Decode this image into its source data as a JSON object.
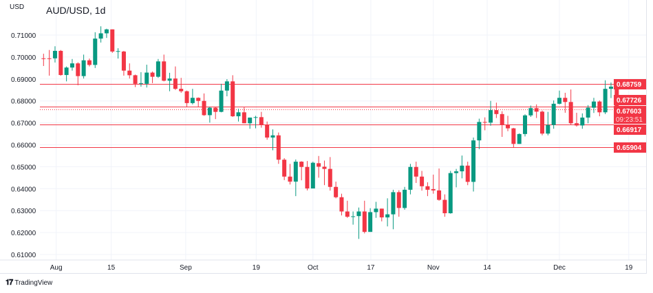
{
  "header": {
    "currency": "USD",
    "title": "AUD/USD, 1d"
  },
  "footer": {
    "brand": "TradingView",
    "logo_text": "TV"
  },
  "colors": {
    "up": "#089981",
    "down": "#f23645",
    "line": "#f23645",
    "grid": "#f0f3fa",
    "axis_text": "#131722"
  },
  "chart_data": {
    "type": "candlestick",
    "title": "AUD/USD, 1d",
    "ylabel": "USD",
    "ylim": [
      0.6075,
      0.716
    ],
    "y_ticks": [
      "0.71000",
      "0.70000",
      "0.69000",
      "0.68000",
      "0.67000",
      "0.66000",
      "0.65000",
      "0.64000",
      "0.63000",
      "0.62000",
      "0.61000"
    ],
    "x_ticks": [
      {
        "label": "Aug",
        "index": 2.2
      },
      {
        "label": "15",
        "index": 11.8
      },
      {
        "label": "Sep",
        "index": 24.8
      },
      {
        "label": "19",
        "index": 37.1
      },
      {
        "label": "Oct",
        "index": 47
      },
      {
        "label": "17",
        "index": 57.1
      },
      {
        "label": "Nov",
        "index": 68
      },
      {
        "label": "14",
        "index": 77.4
      },
      {
        "label": "Dec",
        "index": 90
      },
      {
        "label": "19",
        "index": 102.1
      }
    ],
    "candle_fields": [
      "open",
      "high",
      "low",
      "close"
    ],
    "candles": [
      [
        0.6994,
        0.7015,
        0.6959,
        0.6993
      ],
      [
        0.6994,
        0.7032,
        0.6915,
        0.6993
      ],
      [
        0.6994,
        0.7049,
        0.6975,
        0.7028
      ],
      [
        0.7028,
        0.7032,
        0.6915,
        0.6918
      ],
      [
        0.6918,
        0.6957,
        0.6889,
        0.6952
      ],
      [
        0.6952,
        0.6991,
        0.6938,
        0.6971
      ],
      [
        0.6971,
        0.6976,
        0.6871,
        0.6913
      ],
      [
        0.6913,
        0.7011,
        0.6902,
        0.6985
      ],
      [
        0.6985,
        0.6993,
        0.6957,
        0.6964
      ],
      [
        0.6964,
        0.7113,
        0.695,
        0.7084
      ],
      [
        0.7084,
        0.714,
        0.7066,
        0.7108
      ],
      [
        0.7108,
        0.7129,
        0.7087,
        0.7126
      ],
      [
        0.7126,
        0.7126,
        0.7019,
        0.7025
      ],
      [
        0.7025,
        0.704,
        0.6993,
        0.7027
      ],
      [
        0.7025,
        0.7028,
        0.6915,
        0.6938
      ],
      [
        0.6938,
        0.6971,
        0.6902,
        0.6917
      ],
      [
        0.6917,
        0.692,
        0.6863,
        0.6878
      ],
      [
        0.6878,
        0.6931,
        0.6865,
        0.6881
      ],
      [
        0.6878,
        0.6965,
        0.6861,
        0.6929
      ],
      [
        0.6929,
        0.6934,
        0.6881,
        0.691
      ],
      [
        0.691,
        0.6991,
        0.6905,
        0.698
      ],
      [
        0.698,
        0.7011,
        0.6889,
        0.6892
      ],
      [
        0.6892,
        0.6928,
        0.6844,
        0.6902
      ],
      [
        0.6902,
        0.6957,
        0.685,
        0.6855
      ],
      [
        0.6855,
        0.6905,
        0.6837,
        0.6844
      ],
      [
        0.6844,
        0.6847,
        0.6774,
        0.679
      ],
      [
        0.679,
        0.6855,
        0.6784,
        0.6814
      ],
      [
        0.6814,
        0.6816,
        0.6774,
        0.68
      ],
      [
        0.68,
        0.6834,
        0.6732,
        0.6735
      ],
      [
        0.6735,
        0.6774,
        0.6701,
        0.6769
      ],
      [
        0.6769,
        0.6774,
        0.6717,
        0.675
      ],
      [
        0.675,
        0.6878,
        0.6748,
        0.6847
      ],
      [
        0.6847,
        0.6899,
        0.6821,
        0.6889
      ],
      [
        0.6889,
        0.6917,
        0.6727,
        0.673
      ],
      [
        0.673,
        0.6764,
        0.6706,
        0.6748
      ],
      [
        0.6748,
        0.6771,
        0.6698,
        0.6698
      ],
      [
        0.6698,
        0.6724,
        0.6673,
        0.6724
      ],
      [
        0.6724,
        0.6732,
        0.6675,
        0.6726
      ],
      [
        0.6726,
        0.675,
        0.6678,
        0.6692
      ],
      [
        0.6692,
        0.6706,
        0.6623,
        0.6633
      ],
      [
        0.6633,
        0.667,
        0.6575,
        0.6643
      ],
      [
        0.6643,
        0.6656,
        0.6513,
        0.6532
      ],
      [
        0.6532,
        0.6539,
        0.6439,
        0.6455
      ],
      [
        0.6455,
        0.6513,
        0.6419,
        0.6432
      ],
      [
        0.6432,
        0.6533,
        0.6366,
        0.6523
      ],
      [
        0.6523,
        0.6525,
        0.6438,
        0.6499
      ],
      [
        0.6499,
        0.6526,
        0.6392,
        0.6401
      ],
      [
        0.6401,
        0.6523,
        0.6401,
        0.6518
      ],
      [
        0.6516,
        0.6549,
        0.645,
        0.65
      ],
      [
        0.65,
        0.6528,
        0.6416,
        0.649
      ],
      [
        0.649,
        0.6544,
        0.6391,
        0.6408
      ],
      [
        0.6408,
        0.6432,
        0.6356,
        0.6361
      ],
      [
        0.6361,
        0.6377,
        0.6278,
        0.6296
      ],
      [
        0.6296,
        0.6345,
        0.6267,
        0.6272
      ],
      [
        0.6272,
        0.6296,
        0.6236,
        0.6274
      ],
      [
        0.6275,
        0.6314,
        0.6171,
        0.6296
      ],
      [
        0.6296,
        0.6345,
        0.6196,
        0.6203
      ],
      [
        0.6203,
        0.6311,
        0.6203,
        0.6293
      ],
      [
        0.6293,
        0.634,
        0.6267,
        0.6309
      ],
      [
        0.6309,
        0.6309,
        0.6251,
        0.6269
      ],
      [
        0.6269,
        0.6356,
        0.6228,
        0.6283
      ],
      [
        0.6283,
        0.6395,
        0.6215,
        0.6384
      ],
      [
        0.6384,
        0.6393,
        0.6272,
        0.6312
      ],
      [
        0.6312,
        0.6408,
        0.6304,
        0.6395
      ],
      [
        0.6395,
        0.6513,
        0.6374,
        0.6499
      ],
      [
        0.6499,
        0.6523,
        0.6426,
        0.6455
      ],
      [
        0.6455,
        0.6481,
        0.6391,
        0.6411
      ],
      [
        0.6411,
        0.6429,
        0.6366,
        0.6395
      ],
      [
        0.6398,
        0.6464,
        0.6377,
        0.6392
      ],
      [
        0.6392,
        0.6492,
        0.6345,
        0.6349
      ],
      [
        0.6349,
        0.6374,
        0.6272,
        0.6288
      ],
      [
        0.6288,
        0.6481,
        0.6286,
        0.6471
      ],
      [
        0.6471,
        0.649,
        0.6406,
        0.6479
      ],
      [
        0.6479,
        0.6551,
        0.6447,
        0.6505
      ],
      [
        0.6505,
        0.6523,
        0.6416,
        0.6431
      ],
      [
        0.6431,
        0.6633,
        0.6387,
        0.662
      ],
      [
        0.662,
        0.6719,
        0.658,
        0.6704
      ],
      [
        0.6704,
        0.6725,
        0.6666,
        0.6701
      ],
      [
        0.6701,
        0.68,
        0.6687,
        0.6758
      ],
      [
        0.6758,
        0.6792,
        0.6722,
        0.674
      ],
      [
        0.674,
        0.6753,
        0.6636,
        0.6692
      ],
      [
        0.6692,
        0.6732,
        0.6662,
        0.6675
      ],
      [
        0.6675,
        0.6677,
        0.6588,
        0.6604
      ],
      [
        0.6604,
        0.6652,
        0.6604,
        0.6649
      ],
      [
        0.6649,
        0.6739,
        0.6638,
        0.6734
      ],
      [
        0.6734,
        0.6779,
        0.6727,
        0.6767
      ],
      [
        0.6767,
        0.6784,
        0.6722,
        0.6751
      ],
      [
        0.6751,
        0.6756,
        0.6643,
        0.6651
      ],
      [
        0.6651,
        0.675,
        0.6643,
        0.669
      ],
      [
        0.669,
        0.6802,
        0.6673,
        0.6787
      ],
      [
        0.6787,
        0.6847,
        0.6784,
        0.6814
      ],
      [
        0.6814,
        0.6837,
        0.6746,
        0.6795
      ],
      [
        0.6795,
        0.6852,
        0.669,
        0.6698
      ],
      [
        0.6698,
        0.6746,
        0.6683,
        0.6688
      ],
      [
        0.6688,
        0.6743,
        0.6673,
        0.6724
      ],
      [
        0.6724,
        0.6781,
        0.6698,
        0.6769
      ],
      [
        0.6769,
        0.6814,
        0.6745,
        0.6797
      ],
      [
        0.6797,
        0.6802,
        0.673,
        0.6748
      ],
      [
        0.6748,
        0.6894,
        0.674,
        0.6855
      ],
      [
        0.6855,
        0.6884,
        0.6813,
        0.6865
      ],
      [
        0.6865,
        0.6871,
        0.6751,
        0.67603
      ]
    ],
    "horizontal_lines": [
      {
        "price": 0.68759,
        "label": "0.68759"
      },
      {
        "price": 0.67726,
        "label": "0.67726"
      },
      {
        "price": 0.66917,
        "label": "0.66917"
      },
      {
        "price": 0.65904,
        "label": "0.65904"
      }
    ],
    "current_price": {
      "price": 0.67603,
      "label": "0.67603",
      "countdown": "09:23:51"
    },
    "grid": true
  }
}
